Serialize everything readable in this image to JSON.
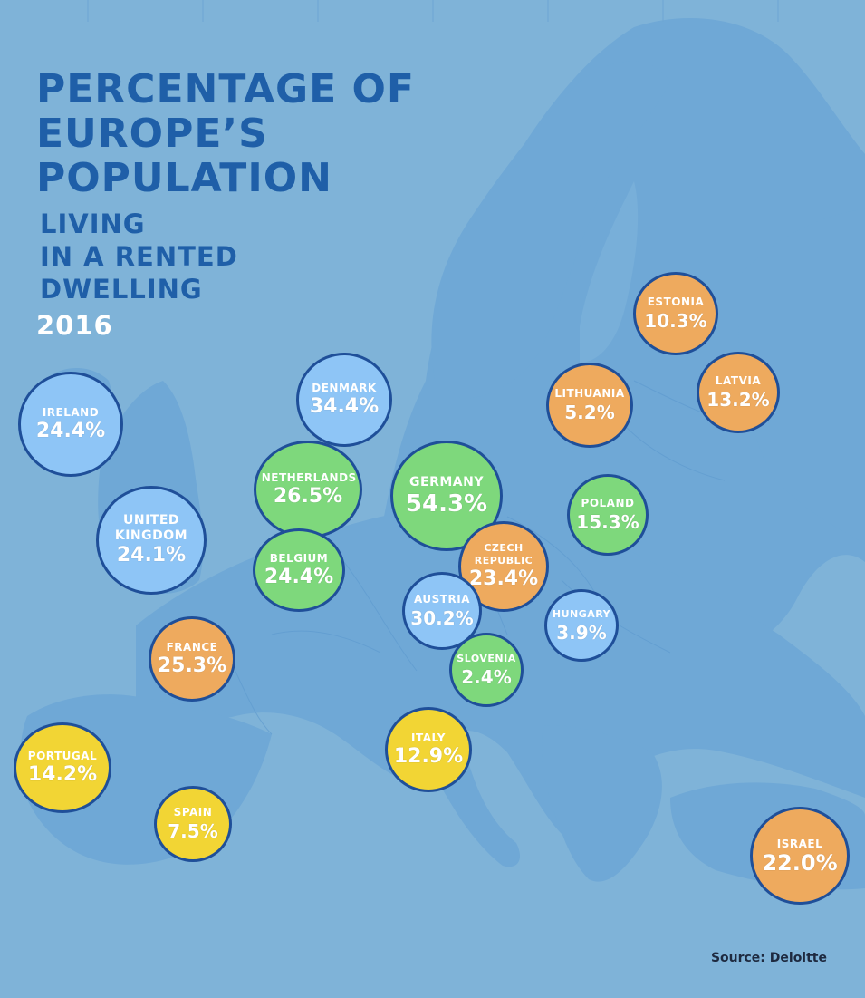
{
  "title": {
    "line1": "PERCENTAGE OF",
    "line2": "EUROPE’S",
    "line3": "POPULATION",
    "sub1": "LIVING",
    "sub2": "IN A RENTED",
    "sub3": "DWELLING"
  },
  "year": "2016",
  "source": "Source: Deloitte",
  "colors": {
    "sea": "#7fb3d8",
    "land": "#6fa8d6",
    "border": "#1f4f99",
    "blue": "#8ec5f6",
    "green": "#7ed87c",
    "orange": "#eeaa5e",
    "yellow": "#f2d534",
    "title": "#1f5fa8"
  },
  "chart_data": {
    "type": "map-bubbles",
    "countries": [
      {
        "name": "IRELAND",
        "value": "24.4%",
        "color": "blue"
      },
      {
        "name": "DENMARK",
        "value": "34.4%",
        "color": "blue"
      },
      {
        "name": "UNITED KINGDOM",
        "value": "24.1%",
        "color": "blue"
      },
      {
        "name": "NETHERLANDS",
        "value": "26.5%",
        "color": "green"
      },
      {
        "name": "GERMANY",
        "value": "54.3%",
        "color": "green"
      },
      {
        "name": "BELGIUM",
        "value": "24.4%",
        "color": "green"
      },
      {
        "name": "CZECH REPUBLIC",
        "value": "23.4%",
        "color": "orange"
      },
      {
        "name": "AUSTRIA",
        "value": "30.2%",
        "color": "blue"
      },
      {
        "name": "POLAND",
        "value": "15.3%",
        "color": "green"
      },
      {
        "name": "HUNGARY",
        "value": "3.9%",
        "color": "blue"
      },
      {
        "name": "SLOVENIA",
        "value": "2.4%",
        "color": "green"
      },
      {
        "name": "ESTONIA",
        "value": "10.3%",
        "color": "orange"
      },
      {
        "name": "LATVIA",
        "value": "13.2%",
        "color": "orange"
      },
      {
        "name": "LITHUANIA",
        "value": "5.2%",
        "color": "orange"
      },
      {
        "name": "FRANCE",
        "value": "25.3%",
        "color": "orange"
      },
      {
        "name": "PORTUGAL",
        "value": "14.2%",
        "color": "yellow"
      },
      {
        "name": "SPAIN",
        "value": "7.5%",
        "color": "yellow"
      },
      {
        "name": "ITALY",
        "value": "12.9%",
        "color": "yellow"
      },
      {
        "name": "ISRAEL",
        "value": "22.0%",
        "color": "orange"
      }
    ]
  }
}
